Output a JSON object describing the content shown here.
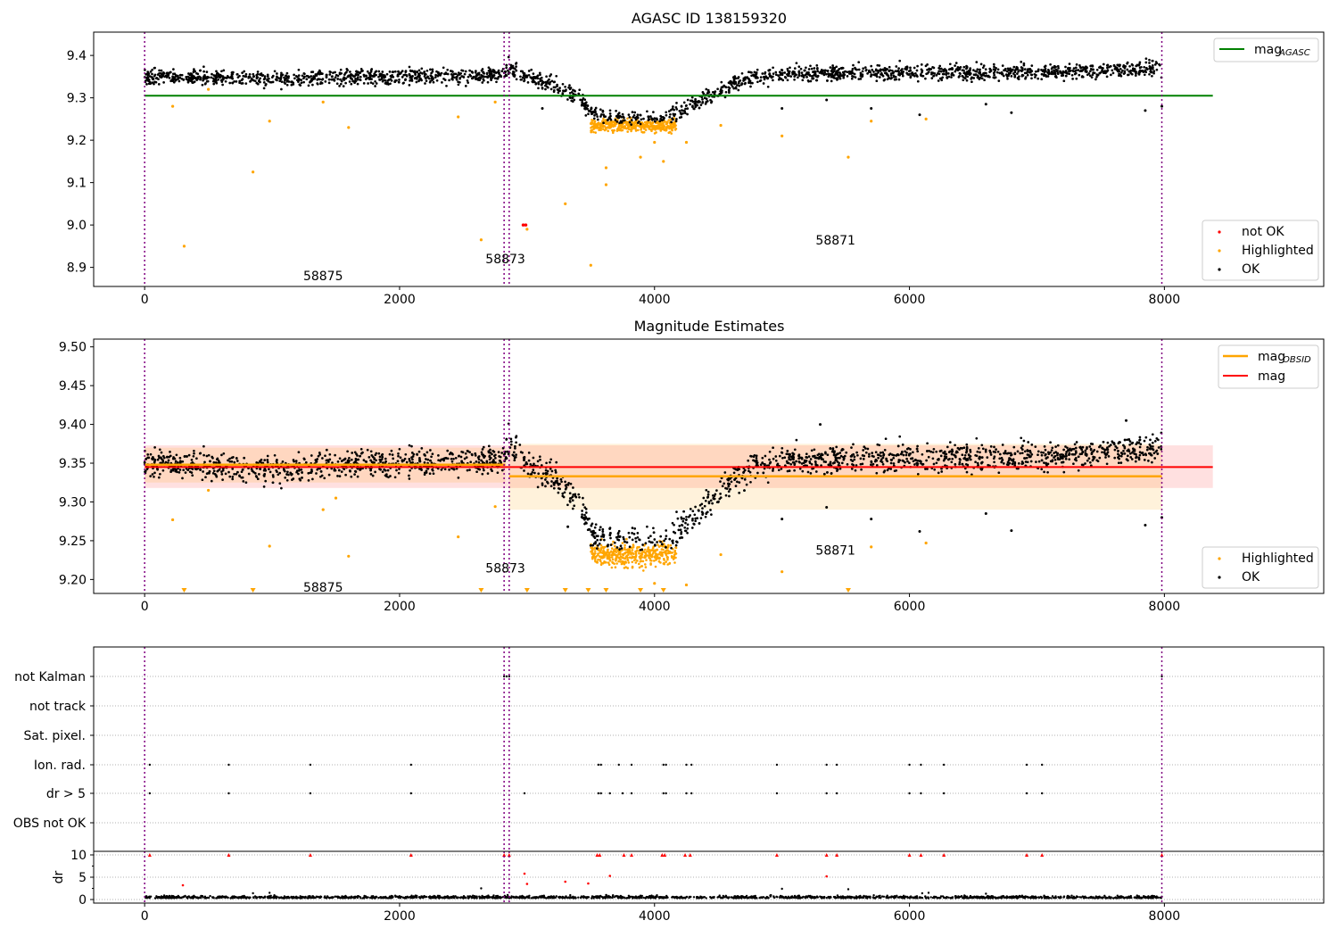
{
  "chart_data": [
    {
      "type": "scatter",
      "title": "AGASC ID 138159320",
      "xlim": [
        -400,
        9250
      ],
      "ylim": [
        8.855,
        9.455
      ],
      "xticks": [
        0,
        2000,
        4000,
        6000,
        8000
      ],
      "yticks": [
        8.9,
        9.0,
        9.1,
        9.2,
        9.3,
        9.4
      ],
      "ytick_labels": [
        "8.9",
        "9.0",
        "9.1",
        "9.2",
        "9.3",
        "9.4"
      ],
      "grid": false,
      "mag_agasc": 9.305,
      "mag_agasc_label": "mag_AGASC",
      "legend_top": {
        "position": "top-right",
        "entries": [
          {
            "label": "mag",
            "sub": "AGASC",
            "color": "#008000"
          }
        ]
      },
      "legend_bottom": {
        "position": "bottom-right",
        "entries": [
          {
            "label": "not OK",
            "color": "#ff0000"
          },
          {
            "label": "Highlighted",
            "color": "#ffa500"
          },
          {
            "label": "OK",
            "color": "#000000"
          }
        ]
      },
      "obsid_boundaries": [
        0,
        2820,
        2860,
        7980
      ],
      "annotations": [
        {
          "text": "58875",
          "x": 1400,
          "y": 8.88
        },
        {
          "text": "58873",
          "x": 2830,
          "y": 8.92
        },
        {
          "text": "58871",
          "x": 5420,
          "y": 8.965
        }
      ],
      "highlighted_points": [
        [
          220,
          9.28
        ],
        [
          310,
          8.95
        ],
        [
          500,
          9.32
        ],
        [
          850,
          9.125
        ],
        [
          980,
          9.245
        ],
        [
          1400,
          9.29
        ],
        [
          1600,
          9.23
        ],
        [
          2460,
          9.255
        ],
        [
          2640,
          8.965
        ],
        [
          2750,
          9.29
        ],
        [
          3000,
          8.99
        ],
        [
          3300,
          9.05
        ],
        [
          3500,
          8.905
        ],
        [
          3620,
          9.135
        ],
        [
          3620,
          9.095
        ],
        [
          3890,
          9.16
        ],
        [
          4000,
          9.195
        ],
        [
          4070,
          9.15
        ],
        [
          4250,
          9.195
        ],
        [
          4520,
          9.235
        ],
        [
          5000,
          9.21
        ],
        [
          5520,
          9.16
        ],
        [
          5700,
          9.245
        ],
        [
          6130,
          9.25
        ]
      ],
      "not_ok_points": [
        [
          2970,
          9.0
        ],
        [
          2990,
          9.0
        ]
      ],
      "ok_outliers": [
        [
          3120,
          9.275
        ],
        [
          5000,
          9.275
        ],
        [
          5350,
          9.295
        ],
        [
          5700,
          9.275
        ],
        [
          6080,
          9.26
        ],
        [
          6600,
          9.285
        ],
        [
          6800,
          9.265
        ],
        [
          7850,
          9.27
        ],
        [
          7980,
          9.28
        ]
      ],
      "trend_ok": {
        "x": [
          0,
          500,
          1000,
          1500,
          2000,
          2500,
          2800,
          2850,
          3000,
          3200,
          3400,
          3500,
          3600,
          3800,
          4000,
          4100,
          4200,
          4400,
          4600,
          4800,
          5000,
          6000,
          7000,
          7980
        ],
        "y": [
          9.35,
          9.347,
          9.343,
          9.348,
          9.352,
          9.35,
          9.355,
          9.37,
          9.35,
          9.33,
          9.3,
          9.27,
          9.258,
          9.25,
          9.25,
          9.255,
          9.27,
          9.3,
          9.33,
          9.35,
          9.357,
          9.36,
          9.36,
          9.37
        ]
      },
      "highlight_band": {
        "x": [
          3500,
          4170
        ],
        "y_center": 9.235
      }
    },
    {
      "type": "scatter",
      "title": "Magnitude Estimates",
      "xlim": [
        -400,
        9250
      ],
      "ylim": [
        9.182,
        9.51
      ],
      "xticks": [
        0,
        2000,
        4000,
        6000,
        8000
      ],
      "yticks": [
        9.2,
        9.25,
        9.3,
        9.35,
        9.4,
        9.45,
        9.5
      ],
      "ytick_labels": [
        "9.20",
        "9.25",
        "9.30",
        "9.35",
        "9.40",
        "9.45",
        "9.50"
      ],
      "grid": false,
      "mag": 9.345,
      "mag_band": [
        9.318,
        9.373
      ],
      "mag_obsid_segments": [
        {
          "x": [
            0,
            2830
          ],
          "mag": 9.348,
          "band": [
            9.325,
            9.37
          ]
        },
        {
          "x": [
            2860,
            7980
          ],
          "mag": 9.333,
          "band": [
            9.29,
            9.375
          ]
        }
      ],
      "legend_top": {
        "position": "top-right",
        "entries": [
          {
            "label": "mag",
            "sub": "OBSID",
            "color": "#ffa500"
          },
          {
            "label": "mag",
            "color": "#ff0000"
          }
        ]
      },
      "legend_bottom": {
        "position": "bottom-right",
        "entries": [
          {
            "label": "Highlighted",
            "color": "#ffa500"
          },
          {
            "label": "OK",
            "color": "#000000"
          }
        ]
      },
      "obsid_boundaries": [
        0,
        2820,
        2860,
        7980
      ],
      "annotations": [
        {
          "text": "58875",
          "x": 1400,
          "y": 9.19
        },
        {
          "text": "58873",
          "x": 2830,
          "y": 9.215
        },
        {
          "text": "58871",
          "x": 5420,
          "y": 9.238
        }
      ],
      "off_scale_markers_x": [
        310,
        850,
        2640,
        3000,
        3300,
        3480,
        3620,
        3890,
        4070,
        5520
      ],
      "highlighted_points": [
        [
          220,
          9.277
        ],
        [
          500,
          9.315
        ],
        [
          980,
          9.243
        ],
        [
          1400,
          9.29
        ],
        [
          1500,
          9.305
        ],
        [
          1600,
          9.23
        ],
        [
          2460,
          9.255
        ],
        [
          2750,
          9.294
        ],
        [
          4000,
          9.195
        ],
        [
          4250,
          9.193
        ],
        [
          4520,
          9.232
        ],
        [
          5000,
          9.21
        ],
        [
          5700,
          9.242
        ],
        [
          6130,
          9.247
        ]
      ],
      "ok_outliers": [
        [
          3320,
          9.268
        ],
        [
          5000,
          9.278
        ],
        [
          5350,
          9.293
        ],
        [
          5700,
          9.278
        ],
        [
          6080,
          9.262
        ],
        [
          6600,
          9.285
        ],
        [
          6800,
          9.263
        ],
        [
          7850,
          9.27
        ],
        [
          7980,
          9.28
        ],
        [
          5300,
          9.4
        ],
        [
          7700,
          9.405
        ]
      ],
      "trend_ok": {
        "x": [
          0,
          500,
          1000,
          1500,
          2000,
          2500,
          2800,
          2850,
          3000,
          3200,
          3400,
          3500,
          3600,
          3800,
          4000,
          4100,
          4200,
          4400,
          4600,
          4800,
          5000,
          6000,
          7000,
          7980
        ],
        "y": [
          9.35,
          9.345,
          9.34,
          9.348,
          9.352,
          9.35,
          9.355,
          9.375,
          9.35,
          9.33,
          9.3,
          9.265,
          9.253,
          9.25,
          9.25,
          9.252,
          9.27,
          9.295,
          9.325,
          9.35,
          9.355,
          9.357,
          9.358,
          9.37
        ]
      },
      "highlight_band": {
        "x": [
          3500,
          4170
        ],
        "y_center": 9.232
      }
    },
    {
      "type": "scatter",
      "title": "",
      "xlim": [
        -400,
        9250
      ],
      "category_rows": [
        "not Kalman",
        "not track",
        "Sat. pixel.",
        "Ion. rad.",
        "dr > 5",
        "OBS not OK"
      ],
      "ion_rad_x": [
        40,
        660,
        1300,
        2090,
        3560,
        3580,
        3720,
        3820,
        4070,
        4090,
        4250,
        4290,
        4960,
        5350,
        5430,
        6000,
        6090,
        6270,
        6920,
        7040
      ],
      "dr_gt5_x": [
        40,
        660,
        1300,
        2090,
        2980,
        3560,
        3580,
        3650,
        3750,
        3820,
        4070,
        4090,
        4250,
        4290,
        4960,
        5350,
        5430,
        6000,
        6090,
        6270,
        6920,
        7040
      ],
      "not_kalman_x": [
        2820,
        2840,
        2860,
        7980
      ],
      "dr_panel": {
        "ylabel": "dr",
        "ylim": [
          -0.8,
          10.8
        ],
        "yticks": [
          0,
          5,
          10
        ],
        "ytick_labels": [
          "0",
          "5",
          "10"
        ],
        "clipped_markers_x": [
          40,
          660,
          1300,
          2090,
          2820,
          2860,
          3550,
          3570,
          3760,
          3820,
          4060,
          4080,
          4240,
          4280,
          4960,
          5350,
          5430,
          6000,
          6090,
          6270,
          6920,
          7040,
          7980
        ],
        "red_points": [
          [
            300,
            3.2
          ],
          [
            2980,
            5.8
          ],
          [
            3000,
            3.5
          ],
          [
            3300,
            4.0
          ],
          [
            3480,
            3.6
          ],
          [
            3650,
            5.3
          ],
          [
            5350,
            5.2
          ]
        ],
        "black_points": [
          [
            850,
            1.4
          ],
          [
            980,
            1.5
          ],
          [
            2640,
            2.5
          ],
          [
            3620,
            1.0
          ],
          [
            5000,
            2.4
          ],
          [
            5520,
            2.3
          ],
          [
            6100,
            1.4
          ],
          [
            6150,
            1.5
          ],
          [
            6600,
            1.3
          ]
        ],
        "baseline": 0.3
      },
      "xticks": [
        0,
        2000,
        4000,
        6000,
        8000
      ],
      "obsid_boundaries": [
        0,
        2820,
        2860,
        7980
      ]
    }
  ]
}
